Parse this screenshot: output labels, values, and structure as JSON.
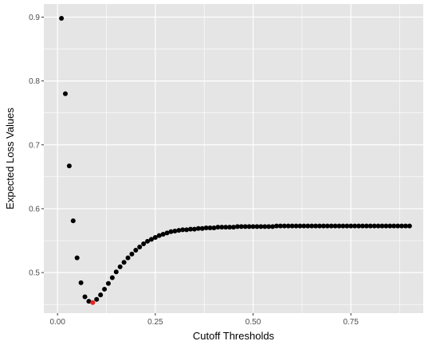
{
  "chart_data": {
    "type": "scatter",
    "xlabel": "Cutoff Thresholds",
    "ylabel": "Expected Loss Values",
    "xlim": [
      -0.035,
      0.935
    ],
    "ylim": [
      0.4365,
      0.9205
    ],
    "x_ticks": [
      0.0,
      0.25,
      0.5,
      0.75
    ],
    "x_tick_labels": [
      "0.00",
      "0.25",
      "0.50",
      "0.75"
    ],
    "y_ticks": [
      0.5,
      0.6,
      0.7,
      0.8,
      0.9
    ],
    "y_tick_labels": [
      "0.5",
      "0.6",
      "0.7",
      "0.8",
      "0.9"
    ],
    "grid": true,
    "background": "#E5E5E5",
    "grid_color": "#FFFFFF",
    "point_color": "#000000",
    "highlight_color": "#E8251F",
    "highlight_x": 0.09,
    "x": [
      0.01,
      0.02,
      0.03,
      0.04,
      0.05,
      0.06,
      0.07,
      0.08,
      0.09,
      0.1,
      0.11,
      0.12,
      0.13,
      0.14,
      0.15,
      0.16,
      0.17,
      0.18,
      0.19,
      0.2,
      0.21,
      0.22,
      0.23,
      0.24,
      0.25,
      0.26,
      0.27,
      0.28,
      0.29,
      0.3,
      0.31,
      0.32,
      0.33,
      0.34,
      0.35,
      0.36,
      0.37,
      0.38,
      0.39,
      0.4,
      0.41,
      0.42,
      0.43,
      0.44,
      0.45,
      0.46,
      0.47,
      0.48,
      0.49,
      0.5,
      0.51,
      0.52,
      0.53,
      0.54,
      0.55,
      0.56,
      0.57,
      0.58,
      0.59,
      0.6,
      0.61,
      0.62,
      0.63,
      0.64,
      0.65,
      0.66,
      0.67,
      0.68,
      0.69,
      0.7,
      0.71,
      0.72,
      0.73,
      0.74,
      0.75,
      0.76,
      0.77,
      0.78,
      0.79,
      0.8,
      0.81,
      0.82,
      0.83,
      0.84,
      0.85,
      0.86,
      0.87,
      0.88,
      0.89,
      0.9
    ],
    "y": [
      0.898,
      0.78,
      0.667,
      0.581,
      0.523,
      0.484,
      0.462,
      0.455,
      0.453,
      0.458,
      0.465,
      0.474,
      0.483,
      0.492,
      0.501,
      0.509,
      0.516,
      0.523,
      0.529,
      0.535,
      0.54,
      0.545,
      0.549,
      0.552,
      0.555,
      0.558,
      0.56,
      0.562,
      0.564,
      0.565,
      0.566,
      0.567,
      0.567,
      0.568,
      0.568,
      0.569,
      0.569,
      0.57,
      0.57,
      0.57,
      0.571,
      0.571,
      0.571,
      0.571,
      0.571,
      0.572,
      0.572,
      0.572,
      0.572,
      0.572,
      0.572,
      0.572,
      0.572,
      0.572,
      0.572,
      0.573,
      0.573,
      0.573,
      0.573,
      0.573,
      0.573,
      0.573,
      0.573,
      0.573,
      0.573,
      0.573,
      0.573,
      0.573,
      0.573,
      0.573,
      0.573,
      0.573,
      0.573,
      0.573,
      0.573,
      0.573,
      0.573,
      0.573,
      0.573,
      0.573,
      0.573,
      0.573,
      0.573,
      0.573,
      0.573,
      0.573,
      0.573,
      0.573,
      0.573,
      0.573
    ]
  }
}
